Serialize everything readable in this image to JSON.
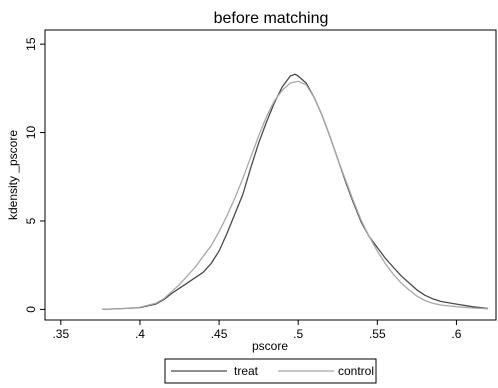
{
  "chart_data": {
    "type": "line",
    "title": "before matching",
    "xlabel": "pscore",
    "ylabel": "kdensity _pscore",
    "xlim": [
      0.34,
      0.625
    ],
    "ylim": [
      -0.6,
      15.8
    ],
    "xticks": [
      0.35,
      0.4,
      0.45,
      0.5,
      0.55,
      0.6
    ],
    "xtick_labels": [
      ".35",
      ".4",
      ".45",
      ".5",
      ".55",
      ".6"
    ],
    "yticks": [
      0,
      5,
      10,
      15
    ],
    "ytick_labels": [
      "0",
      "5",
      "10",
      "15"
    ],
    "grid": false,
    "legend_position": "bottom",
    "series": [
      {
        "name": "treat",
        "color": "#4a4a4a",
        "x": [
          0.376,
          0.39,
          0.4,
          0.41,
          0.415,
          0.42,
          0.425,
          0.43,
          0.435,
          0.44,
          0.445,
          0.45,
          0.455,
          0.46,
          0.465,
          0.47,
          0.475,
          0.48,
          0.485,
          0.49,
          0.495,
          0.498,
          0.5,
          0.505,
          0.51,
          0.515,
          0.52,
          0.525,
          0.53,
          0.535,
          0.54,
          0.545,
          0.55,
          0.555,
          0.56,
          0.565,
          0.57,
          0.575,
          0.58,
          0.585,
          0.59,
          0.6,
          0.61,
          0.62
        ],
        "y": [
          0.0,
          0.05,
          0.1,
          0.3,
          0.55,
          0.9,
          1.2,
          1.5,
          1.8,
          2.1,
          2.6,
          3.3,
          4.3,
          5.4,
          6.5,
          8.0,
          9.4,
          10.6,
          11.7,
          12.6,
          13.2,
          13.3,
          13.2,
          12.8,
          12.0,
          11.0,
          9.8,
          8.5,
          7.2,
          6.0,
          4.9,
          4.1,
          3.5,
          2.9,
          2.4,
          1.9,
          1.5,
          1.1,
          0.8,
          0.6,
          0.45,
          0.3,
          0.15,
          0.05
        ]
      },
      {
        "name": "control",
        "color": "#a8a8a8",
        "x": [
          0.376,
          0.39,
          0.4,
          0.41,
          0.415,
          0.42,
          0.425,
          0.43,
          0.435,
          0.44,
          0.445,
          0.45,
          0.455,
          0.46,
          0.465,
          0.47,
          0.475,
          0.48,
          0.485,
          0.49,
          0.495,
          0.5,
          0.505,
          0.51,
          0.515,
          0.52,
          0.525,
          0.53,
          0.535,
          0.54,
          0.545,
          0.55,
          0.555,
          0.56,
          0.565,
          0.57,
          0.575,
          0.58,
          0.585,
          0.59,
          0.6,
          0.61,
          0.62
        ],
        "y": [
          0.0,
          0.05,
          0.12,
          0.35,
          0.6,
          1.0,
          1.4,
          1.9,
          2.4,
          3.0,
          3.6,
          4.4,
          5.3,
          6.3,
          7.4,
          8.6,
          9.8,
          10.9,
          11.8,
          12.4,
          12.8,
          12.9,
          12.7,
          12.0,
          11.0,
          9.8,
          8.5,
          7.3,
          6.1,
          5.0,
          4.1,
          3.3,
          2.6,
          2.0,
          1.5,
          1.1,
          0.75,
          0.5,
          0.35,
          0.25,
          0.15,
          0.08,
          0.03
        ]
      }
    ]
  }
}
